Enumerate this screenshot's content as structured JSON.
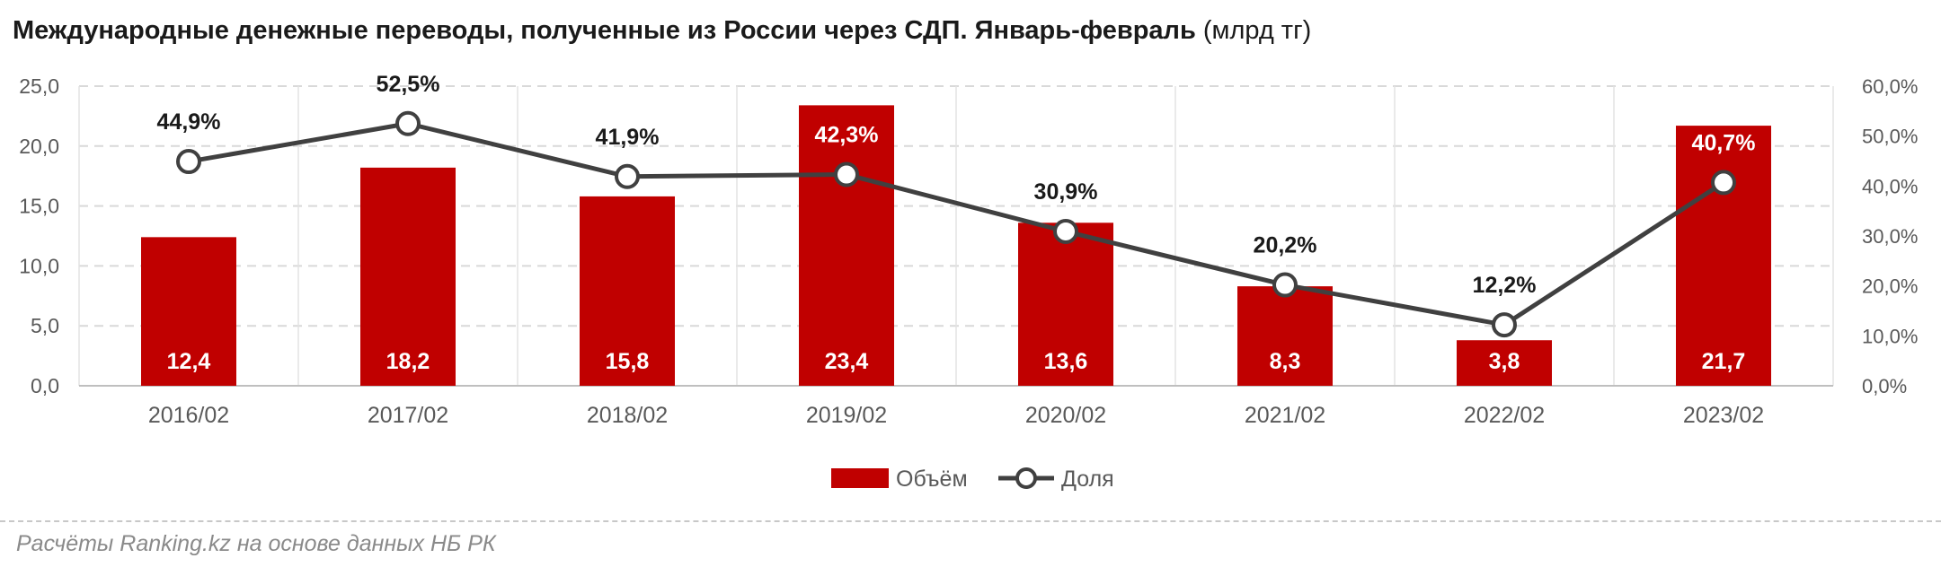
{
  "title": "Международные денежные переводы, полученные из России через СДП. Январь-февраль",
  "title_unit": "(млрд тг)",
  "source_note": "Расчёты Ranking.kz на основе данных НБ РК",
  "colors": {
    "bar": "#c00000",
    "line": "#404040",
    "marker_fill": "#ffffff",
    "grid": "#d9d9d9",
    "axis_text": "#595959"
  },
  "chart_data": {
    "type": "bar",
    "categories": [
      "2016/02",
      "2017/02",
      "2018/02",
      "2019/02",
      "2020/02",
      "2021/02",
      "2022/02",
      "2023/02"
    ],
    "series": [
      {
        "name": "Объём",
        "type": "bar",
        "axis": "left",
        "values": [
          12.4,
          18.2,
          15.8,
          23.4,
          13.6,
          8.3,
          3.8,
          21.7
        ],
        "labels": [
          "12,4",
          "18,2",
          "15,8",
          "23,4",
          "13,6",
          "8,3",
          "3,8",
          "21,7"
        ]
      },
      {
        "name": "Доля",
        "type": "line",
        "axis": "right",
        "values": [
          44.9,
          52.5,
          41.9,
          42.3,
          30.9,
          20.2,
          12.2,
          40.7
        ],
        "labels": [
          "44,9%",
          "52,5%",
          "41,9%",
          "42,3%",
          "30,9%",
          "20,2%",
          "12,2%",
          "40,7%"
        ]
      }
    ],
    "y_left": {
      "min": 0,
      "max": 25,
      "ticks": [
        "0,0",
        "5,0",
        "10,0",
        "15,0",
        "20,0",
        "25,0"
      ]
    },
    "y_right": {
      "min": 0,
      "max": 60,
      "ticks": [
        "0,0%",
        "10,0%",
        "20,0%",
        "30,0%",
        "40,0%",
        "50,0%",
        "60,0%"
      ]
    },
    "grid": true,
    "legend_position": "bottom"
  }
}
